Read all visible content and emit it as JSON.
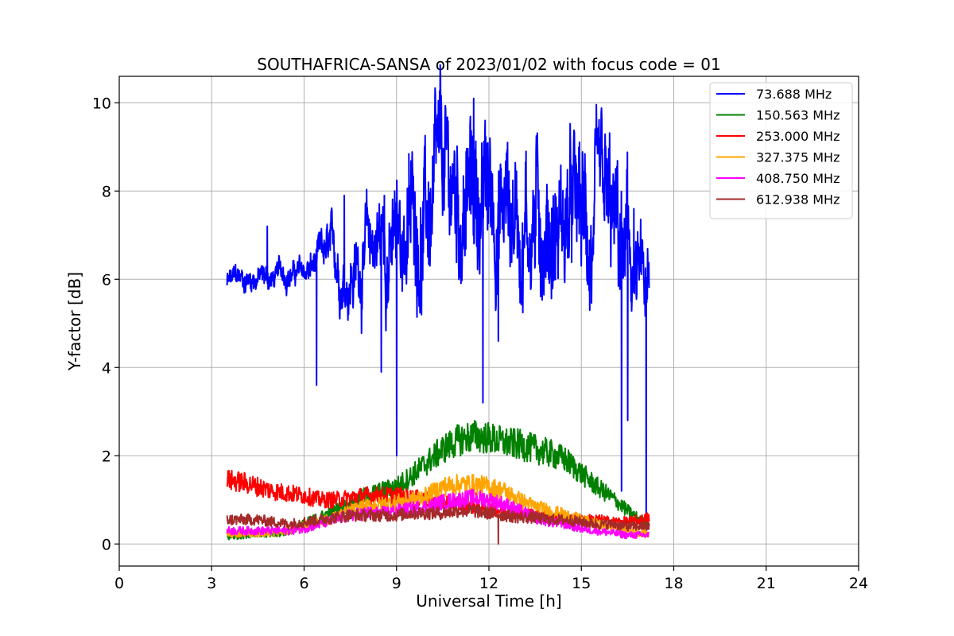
{
  "chart_data": {
    "type": "line",
    "title": "SOUTHAFRICA-SANSA of 2023/01/02 with focus code = 01",
    "xlabel": "Universal Time [h]",
    "ylabel": "Y-factor [dB]",
    "xlim": [
      0,
      24
    ],
    "ylim": [
      -0.5,
      10.6
    ],
    "xticks": [
      0,
      3,
      6,
      9,
      12,
      15,
      18,
      21,
      24
    ],
    "yticks": [
      0,
      2,
      4,
      6,
      8,
      10
    ],
    "grid": true,
    "legend_position": "top-right",
    "series": [
      {
        "name": "73.688 MHz",
        "color": "#0000ff",
        "x": [
          3.5,
          4.0,
          4.5,
          5.0,
          5.5,
          6.0,
          6.4,
          6.8,
          7.2,
          7.6,
          8.0,
          8.5,
          9.0,
          9.5,
          10.0,
          10.5,
          11.0,
          11.5,
          12.0,
          12.5,
          13.0,
          13.5,
          14.0,
          14.5,
          15.0,
          15.5,
          16.0,
          16.5,
          17.0,
          17.2
        ],
        "y": [
          5.9,
          6.0,
          6.1,
          6.0,
          6.2,
          6.1,
          6.3,
          6.4,
          6.2,
          6.3,
          6.6,
          7.0,
          6.6,
          7.4,
          7.4,
          7.6,
          7.7,
          7.9,
          7.8,
          7.7,
          7.6,
          7.5,
          7.4,
          7.3,
          7.0,
          6.7,
          6.5,
          6.2,
          5.6,
          5.0
        ],
        "drops": [
          [
            6.4,
            3.6
          ],
          [
            9.0,
            2.0
          ],
          [
            8.5,
            3.9
          ],
          [
            11.8,
            3.2
          ],
          [
            12.3,
            4.6
          ],
          [
            16.3,
            1.2
          ],
          [
            16.5,
            2.8
          ],
          [
            17.1,
            0.2
          ]
        ],
        "spikes": [
          [
            4.8,
            7.2
          ],
          [
            7.3,
            7.9
          ],
          [
            8.6,
            7.9
          ],
          [
            9.4,
            8.3
          ],
          [
            11.5,
            10.1
          ],
          [
            12.6,
            9.1
          ],
          [
            13.2,
            8.9
          ],
          [
            15.1,
            8.0
          ],
          [
            16.7,
            7.6
          ]
        ]
      },
      {
        "name": "150.563 MHz",
        "color": "#008000",
        "x": [
          3.5,
          4.0,
          4.5,
          5.0,
          5.5,
          6.0,
          6.5,
          7.0,
          7.5,
          8.0,
          8.5,
          9.0,
          9.5,
          10.0,
          10.5,
          11.0,
          11.5,
          12.0,
          12.5,
          13.0,
          13.5,
          14.0,
          14.5,
          15.0,
          15.5,
          16.0,
          16.5,
          17.0,
          17.2
        ],
        "y": [
          0.15,
          0.2,
          0.25,
          0.2,
          0.3,
          0.45,
          0.6,
          0.75,
          0.9,
          1.1,
          1.2,
          1.3,
          1.55,
          1.85,
          2.15,
          2.35,
          2.45,
          2.4,
          2.3,
          2.25,
          2.15,
          2.05,
          1.9,
          1.6,
          1.3,
          1.05,
          0.75,
          0.5,
          0.45
        ]
      },
      {
        "name": "253.000 MHz",
        "color": "#ff0000",
        "x": [
          3.5,
          4.0,
          4.5,
          5.0,
          5.5,
          6.0,
          6.5,
          7.0,
          7.5,
          8.0,
          8.5,
          9.0,
          9.5,
          10.0,
          10.5,
          11.0,
          11.5,
          12.0,
          12.5,
          13.0,
          13.5,
          14.0,
          14.5,
          15.0,
          15.5,
          16.0,
          16.5,
          17.0,
          17.2
        ],
        "y": [
          1.45,
          1.4,
          1.3,
          1.2,
          1.15,
          1.1,
          1.0,
          1.0,
          1.05,
          1.1,
          1.1,
          1.1,
          1.05,
          1.0,
          0.95,
          0.9,
          0.85,
          0.8,
          0.75,
          0.7,
          0.65,
          0.6,
          0.55,
          0.55,
          0.55,
          0.5,
          0.5,
          0.55,
          0.6
        ]
      },
      {
        "name": "327.375 MHz",
        "color": "#ffa500",
        "x": [
          3.5,
          4.0,
          4.5,
          5.0,
          5.5,
          6.0,
          6.5,
          7.0,
          7.5,
          8.0,
          8.5,
          9.0,
          9.5,
          10.0,
          10.5,
          11.0,
          11.5,
          12.0,
          12.5,
          13.0,
          13.5,
          14.0,
          14.5,
          15.0,
          15.5,
          16.0,
          16.5,
          17.0,
          17.2
        ],
        "y": [
          0.2,
          0.25,
          0.25,
          0.25,
          0.3,
          0.4,
          0.5,
          0.6,
          0.75,
          0.85,
          0.9,
          0.95,
          1.0,
          1.1,
          1.3,
          1.35,
          1.35,
          1.3,
          1.2,
          1.0,
          0.85,
          0.75,
          0.65,
          0.55,
          0.45,
          0.4,
          0.3,
          0.25,
          0.2
        ]
      },
      {
        "name": "408.750 MHz",
        "color": "#ff00ff",
        "x": [
          3.5,
          4.0,
          4.5,
          5.0,
          5.5,
          6.0,
          6.5,
          7.0,
          7.5,
          8.0,
          8.5,
          9.0,
          9.5,
          10.0,
          10.5,
          11.0,
          11.5,
          12.0,
          12.5,
          13.0,
          13.5,
          14.0,
          14.5,
          15.0,
          15.5,
          16.0,
          16.5,
          17.0,
          17.2
        ],
        "y": [
          0.3,
          0.3,
          0.3,
          0.3,
          0.3,
          0.35,
          0.45,
          0.55,
          0.65,
          0.7,
          0.7,
          0.75,
          0.8,
          0.85,
          0.95,
          1.0,
          1.05,
          1.0,
          0.9,
          0.75,
          0.6,
          0.5,
          0.45,
          0.35,
          0.3,
          0.25,
          0.2,
          0.2,
          0.2
        ]
      },
      {
        "name": "612.938 MHz",
        "color": "#a52a2a",
        "x": [
          3.5,
          4.0,
          4.5,
          5.0,
          5.5,
          6.0,
          6.5,
          7.0,
          7.5,
          8.0,
          8.5,
          9.0,
          9.5,
          10.0,
          10.5,
          11.0,
          11.5,
          12.0,
          12.5,
          13.0,
          13.5,
          14.0,
          14.5,
          15.0,
          15.5,
          16.0,
          16.5,
          17.0,
          17.2
        ],
        "y": [
          0.55,
          0.55,
          0.55,
          0.5,
          0.45,
          0.5,
          0.55,
          0.6,
          0.65,
          0.65,
          0.65,
          0.65,
          0.7,
          0.7,
          0.7,
          0.75,
          0.75,
          0.7,
          0.65,
          0.6,
          0.6,
          0.55,
          0.55,
          0.5,
          0.45,
          0.45,
          0.4,
          0.4,
          0.4
        ],
        "drops": [
          [
            12.3,
            0.0
          ]
        ]
      }
    ]
  }
}
